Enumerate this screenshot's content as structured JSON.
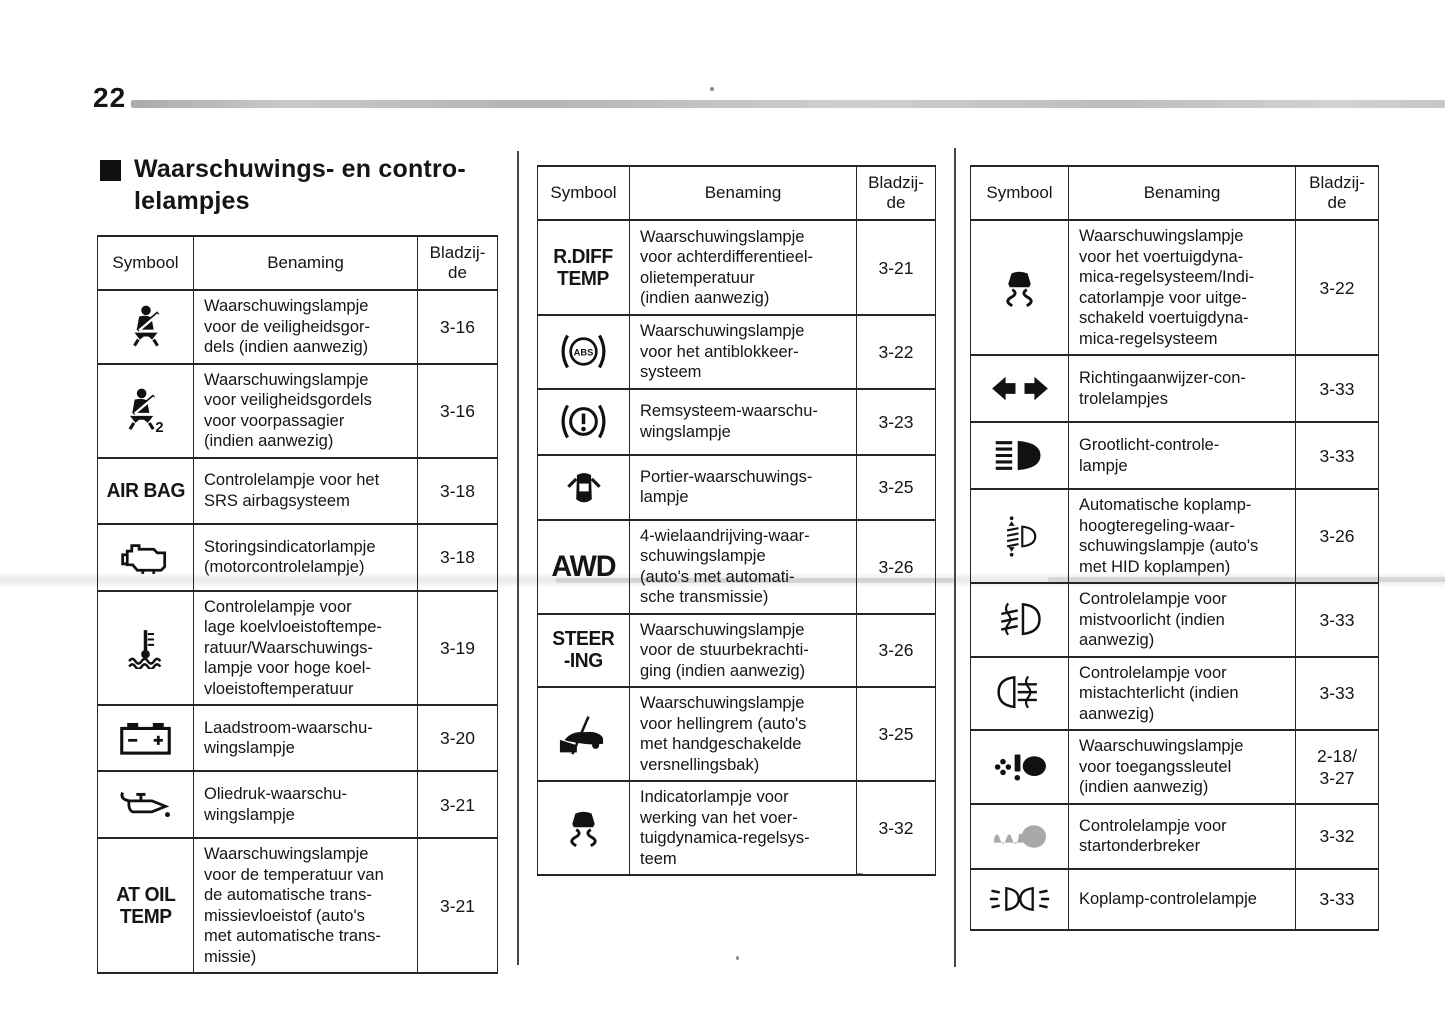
{
  "page_number": "22",
  "section_title": "Waarschuwings- en contro-\nlelampjes",
  "header": {
    "symbol": "Symbool",
    "name": "Benaming",
    "page": "Bladzij-\nde"
  },
  "tables": [
    {
      "rows": [
        {
          "icon": "seatbelt-icon",
          "name": "Waarschuwingslampje\nvoor de veiligheidsgor-\ndels (indien aanwezig)",
          "page": "3-16"
        },
        {
          "icon": "seatbelt-passenger-icon",
          "name": "Waarschuwingslampje\nvoor veiligheidsgordels\nvoor voorpassagier\n(indien aanwezig)",
          "page": "3-16"
        },
        {
          "symbol_text": "AIR BAG",
          "name": "Controlelampje voor het\nSRS airbagsysteem",
          "page": "3-18"
        },
        {
          "icon": "engine-icon",
          "name": "Storingsindicatorlampje\n(motorcontrolelampje)",
          "page": "3-18"
        },
        {
          "icon": "coolant-temperature-icon",
          "name": "Controlelampje voor\nlage koelvloeistoftempe-\nratuur/Waarschuwings-\nlampje voor hoge koel-\nvloeistoftemperatuur",
          "page": "3-19"
        },
        {
          "icon": "battery-icon",
          "name": "Laadstroom-waarschu-\nwingslampje",
          "page": "3-20"
        },
        {
          "icon": "oil-pressure-icon",
          "name": "Oliedruk-waarschu-\nwingslampje",
          "page": "3-21"
        },
        {
          "symbol_text": "AT OIL\nTEMP",
          "name": "Waarschuwingslampje\nvoor de temperatuur van\nde automatische trans-\nmissievloeistof (auto's\nmet automatische trans-\nmissie)",
          "page": "3-21"
        }
      ]
    },
    {
      "rows": [
        {
          "symbol_text": "R.DIFF\nTEMP",
          "name": "Waarschuwingslampje\nvoor achterdifferentieel-\nolietemperatuur\n(indien aanwezig)",
          "page": "3-21"
        },
        {
          "icon": "abs-icon",
          "name": "Waarschuwingslampje\nvoor het antiblokkeer-\nsysteem",
          "page": "3-22"
        },
        {
          "icon": "brake-warning-icon",
          "name": "Remsysteem-waarschu-\nwingslampje",
          "page": "3-23"
        },
        {
          "icon": "door-open-icon",
          "name": "Portier-waarschuwings-\nlampje",
          "page": "3-25"
        },
        {
          "symbol_text": "AWD",
          "text_size": "lg",
          "name": "4-wielaandrijving-waar-\nschuwingslampje\n(auto's met automati-\nsche transmissie)",
          "page": "3-26"
        },
        {
          "symbol_text": "STEER\n-ING",
          "name": "Waarschuwingslampje\nvoor de stuurbekrachti-\nging (indien aanwezig)",
          "page": "3-26"
        },
        {
          "icon": "hill-start-icon",
          "name": "Waarschuwingslampje\nvoor hellingrem (auto's\nmet handgeschakelde\nversnellingsbak)",
          "page": "3-25"
        },
        {
          "icon": "vehicle-dynamics-icon",
          "name": "Indicatorlampje voor\nwerking van het voer-\ntuigdynamica-regelsys-\nteem",
          "page": "3-32"
        }
      ]
    },
    {
      "rows": [
        {
          "icon": "vehicle-dynamics-icon",
          "name": "Waarschuwingslampje\nvoor het voertuigdyna-\nmica-regelsysteem/Indi-\ncatorlampje voor uitge-\nschakeld voertuigdyna-\nmica-regelsysteem",
          "page": "3-22"
        },
        {
          "icon": "turn-signal-arrows-icon",
          "name": "Richtingaanwijzer-con-\ntrolelampjes",
          "page": "3-33"
        },
        {
          "icon": "high-beam-icon",
          "name": "Grootlicht-controle-\nlampje",
          "page": "3-33"
        },
        {
          "icon": "headlight-leveling-icon",
          "name": "Automatische koplamp-\nhoogteregeling-waar-\nschuwingslampje (auto's\nmet HID koplampen)",
          "page": "3-26"
        },
        {
          "icon": "front-fog-light-icon",
          "name": "Controlelampje voor\nmistvoorlicht (indien\naanwezig)",
          "page": "3-33"
        },
        {
          "icon": "rear-fog-light-icon",
          "name": "Controlelampje voor\nmistachterlicht (indien\naanwezig)",
          "page": "3-33"
        },
        {
          "icon": "access-key-icon",
          "name": "Waarschuwingslampje\nvoor toegangssleutel\n(indien aanwezig)",
          "page": "2-18/\n3-27"
        },
        {
          "icon": "immobilizer-key-icon",
          "name": "Controlelampje voor\nstartonderbreker",
          "page": "3-32"
        },
        {
          "icon": "headlight-icon",
          "name": "Koplamp-controlelampje",
          "page": "3-33"
        }
      ]
    }
  ]
}
